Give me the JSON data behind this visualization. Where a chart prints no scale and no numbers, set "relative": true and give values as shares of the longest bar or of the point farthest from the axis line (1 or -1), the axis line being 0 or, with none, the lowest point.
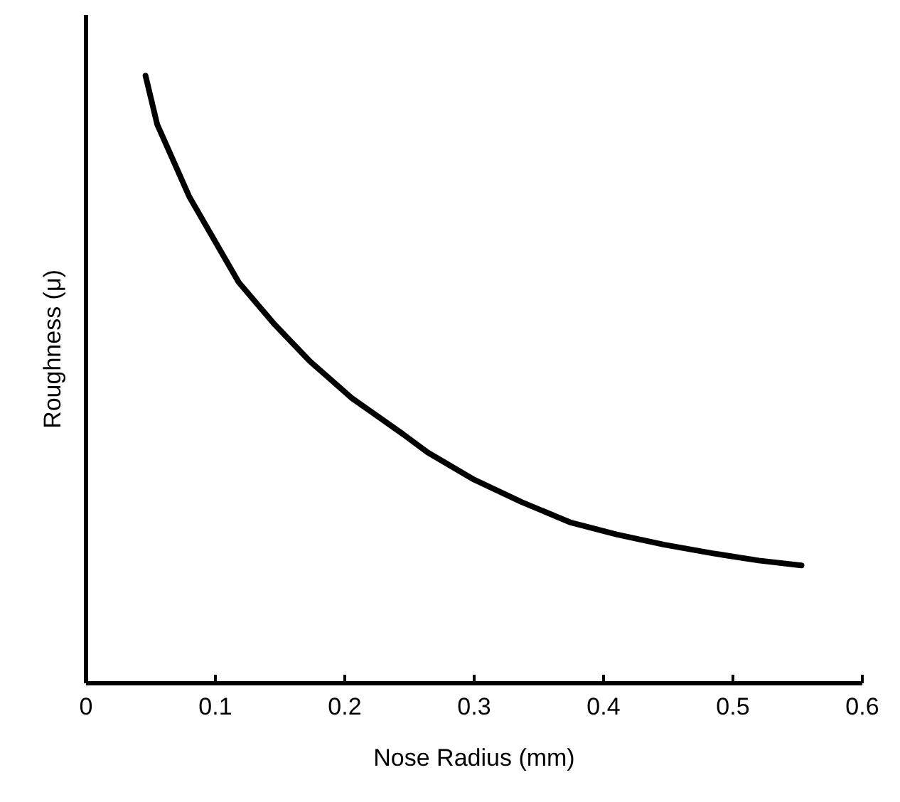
{
  "chart_data": {
    "type": "line",
    "xlabel": "Nose Radius (mm)",
    "ylabel": "Roughness (μ)",
    "x": [
      0.046,
      0.055,
      0.08,
      0.118,
      0.146,
      0.173,
      0.205,
      0.245,
      0.264,
      0.3,
      0.337,
      0.374,
      0.41,
      0.447,
      0.484,
      0.52,
      0.553
    ],
    "series": [
      {
        "color": "#000000",
        "values": [
          1.0,
          0.92,
          0.8,
          0.66,
          0.59,
          0.53,
          0.47,
          0.41,
          0.38,
          0.335,
          0.298,
          0.265,
          0.245,
          0.228,
          0.214,
          0.202,
          0.194
        ]
      }
    ],
    "relative": true,
    "xlim": [
      0,
      0.6
    ],
    "xticks": [
      0,
      0.1,
      0.2,
      0.3,
      0.4,
      0.5,
      0.6
    ],
    "grid": false,
    "line_style": "solid"
  }
}
